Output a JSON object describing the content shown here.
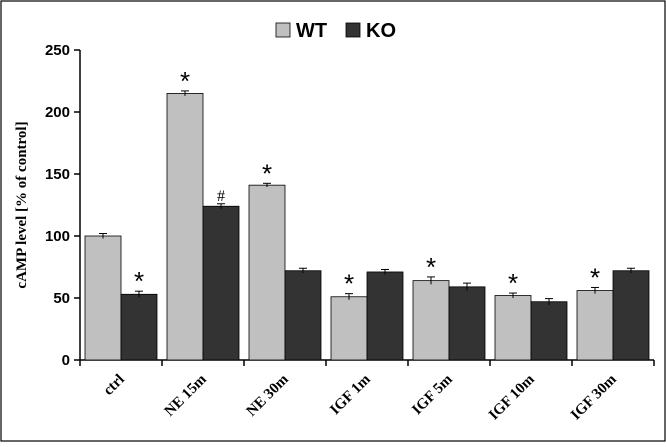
{
  "chart_data": {
    "type": "bar",
    "title": "",
    "xlabel": "",
    "ylabel": "cAMP level [% of control]",
    "ylim": [
      0,
      250
    ],
    "yticks": [
      0,
      50,
      100,
      150,
      200,
      250
    ],
    "categories": [
      "ctrl",
      "NE 15m",
      "NE 30m",
      "IGF 1m",
      "IGF 5m",
      "IGF 10m",
      "IGF 30m"
    ],
    "legend_position": "top-center",
    "grid": false,
    "series": [
      {
        "name": "WT",
        "color": "#c0c0c0",
        "values": [
          100,
          215,
          141,
          51,
          64,
          52,
          56
        ],
        "errors": [
          2,
          2,
          1.5,
          2.5,
          3,
          2,
          2.5
        ],
        "annotations": [
          "",
          "*",
          "*",
          "*",
          "*",
          "*",
          "*"
        ]
      },
      {
        "name": "KO",
        "color": "#333333",
        "values": [
          53,
          124,
          72,
          71,
          59,
          47,
          72
        ],
        "errors": [
          2.5,
          2,
          2,
          2,
          3,
          2.5,
          2
        ],
        "annotations": [
          "*",
          "#",
          "",
          "",
          "",
          "",
          ""
        ]
      }
    ]
  }
}
